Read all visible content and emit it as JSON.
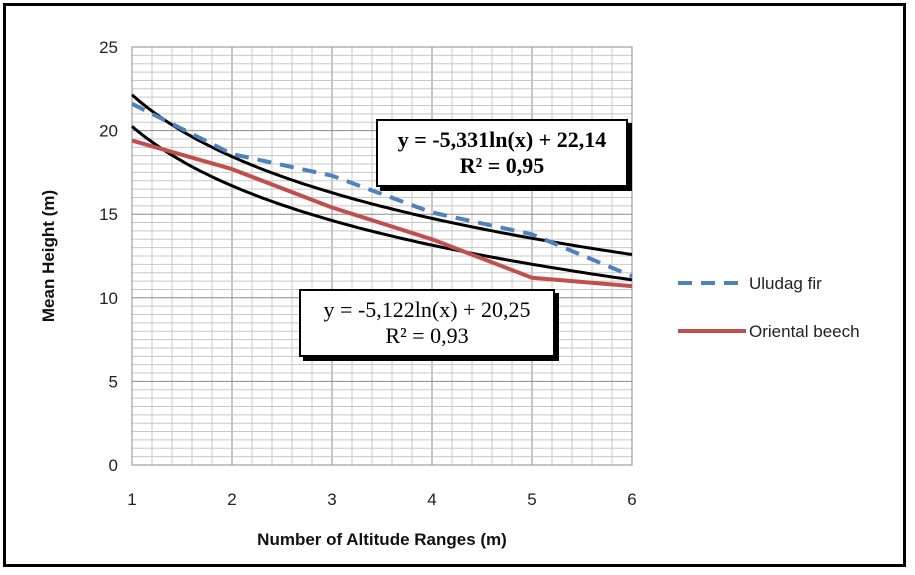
{
  "chart_data": {
    "type": "line",
    "xlabel": "Number of Altitude Ranges (m)",
    "ylabel": "Mean Height (m)",
    "xlim": [
      1,
      6
    ],
    "ylim": [
      0,
      25
    ],
    "x_ticks": [
      "1",
      "2",
      "3",
      "4",
      "5",
      "6"
    ],
    "y_ticks": [
      "0",
      "5",
      "10",
      "15",
      "20",
      "25"
    ],
    "grid": true,
    "legend_position": "right",
    "series": [
      {
        "name": "Uludag fir",
        "style": "dashed",
        "color": "#4F81BD",
        "x": [
          1,
          2,
          3,
          4,
          5,
          6
        ],
        "y": [
          21.6,
          18.6,
          17.3,
          15.1,
          13.8,
          11.3
        ]
      },
      {
        "name": "Oriental beech",
        "style": "solid",
        "color": "#C0504D",
        "x": [
          1,
          2,
          3,
          4,
          5,
          6
        ],
        "y": [
          19.4,
          17.7,
          15.4,
          13.5,
          11.2,
          10.7
        ]
      }
    ],
    "trendlines": [
      {
        "type": "logarithmic",
        "a": -5.331,
        "b": 22.14,
        "color": "#000000"
      },
      {
        "type": "logarithmic",
        "a": -5.122,
        "b": 20.25,
        "color": "#000000"
      }
    ],
    "annotations": {
      "fir_equation": "y = -5,331ln(x) + 22,14",
      "fir_r2": "R² = 0,95",
      "beech_equation": "y = -5,122ln(x) + 20,25",
      "beech_r2": "R² = 0,93"
    }
  }
}
